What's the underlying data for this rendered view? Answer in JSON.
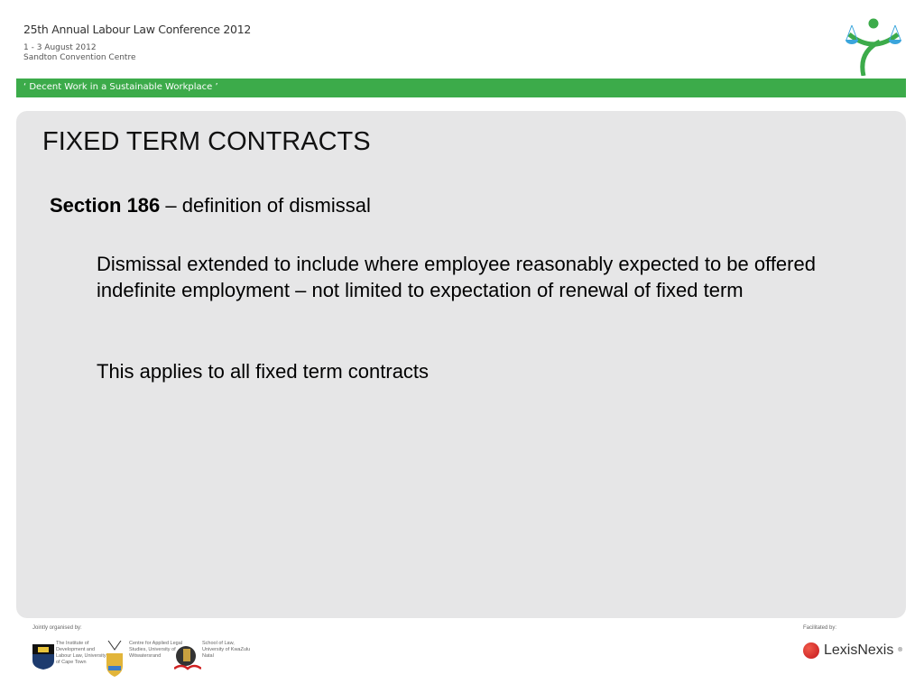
{
  "header": {
    "conference_title": "25th Annual Labour Law Conference 2012",
    "date": "1 - 3 August 2012",
    "venue": "Sandton Convention Centre",
    "tagline": "‘ Decent Work in a Sustainable Workplace ’",
    "accent_color": "#3cab4a",
    "logo_icon": "scales-of-justice-figure-logo"
  },
  "slide": {
    "title": "FIXED TERM CONTRACTS",
    "section_bold": "Section 186",
    "section_rest": " – definition of dismissal",
    "paragraph1": "Dismissal extended to include where employee reasonably expected to be offered indefinite employment – not limited to expectation of renewal of fixed term",
    "paragraph2": "This applies to all fixed term contracts"
  },
  "footer": {
    "organised_label": "Jointly organised by:",
    "organisers": [
      {
        "name": "The Institute of Development and Labour Law, University of Cape Town",
        "icon": "uct-crest-icon"
      },
      {
        "name": "Centre for Applied Legal Studies, University of Witwatersrand",
        "icon": "wits-crest-icon"
      },
      {
        "name": "School of Law, University of KwaZulu Natal",
        "icon": "ukzn-crest-icon"
      }
    ],
    "facilitated_label": "Facilitated by:",
    "sponsor": "LexisNexis",
    "sponsor_mark": "®"
  }
}
